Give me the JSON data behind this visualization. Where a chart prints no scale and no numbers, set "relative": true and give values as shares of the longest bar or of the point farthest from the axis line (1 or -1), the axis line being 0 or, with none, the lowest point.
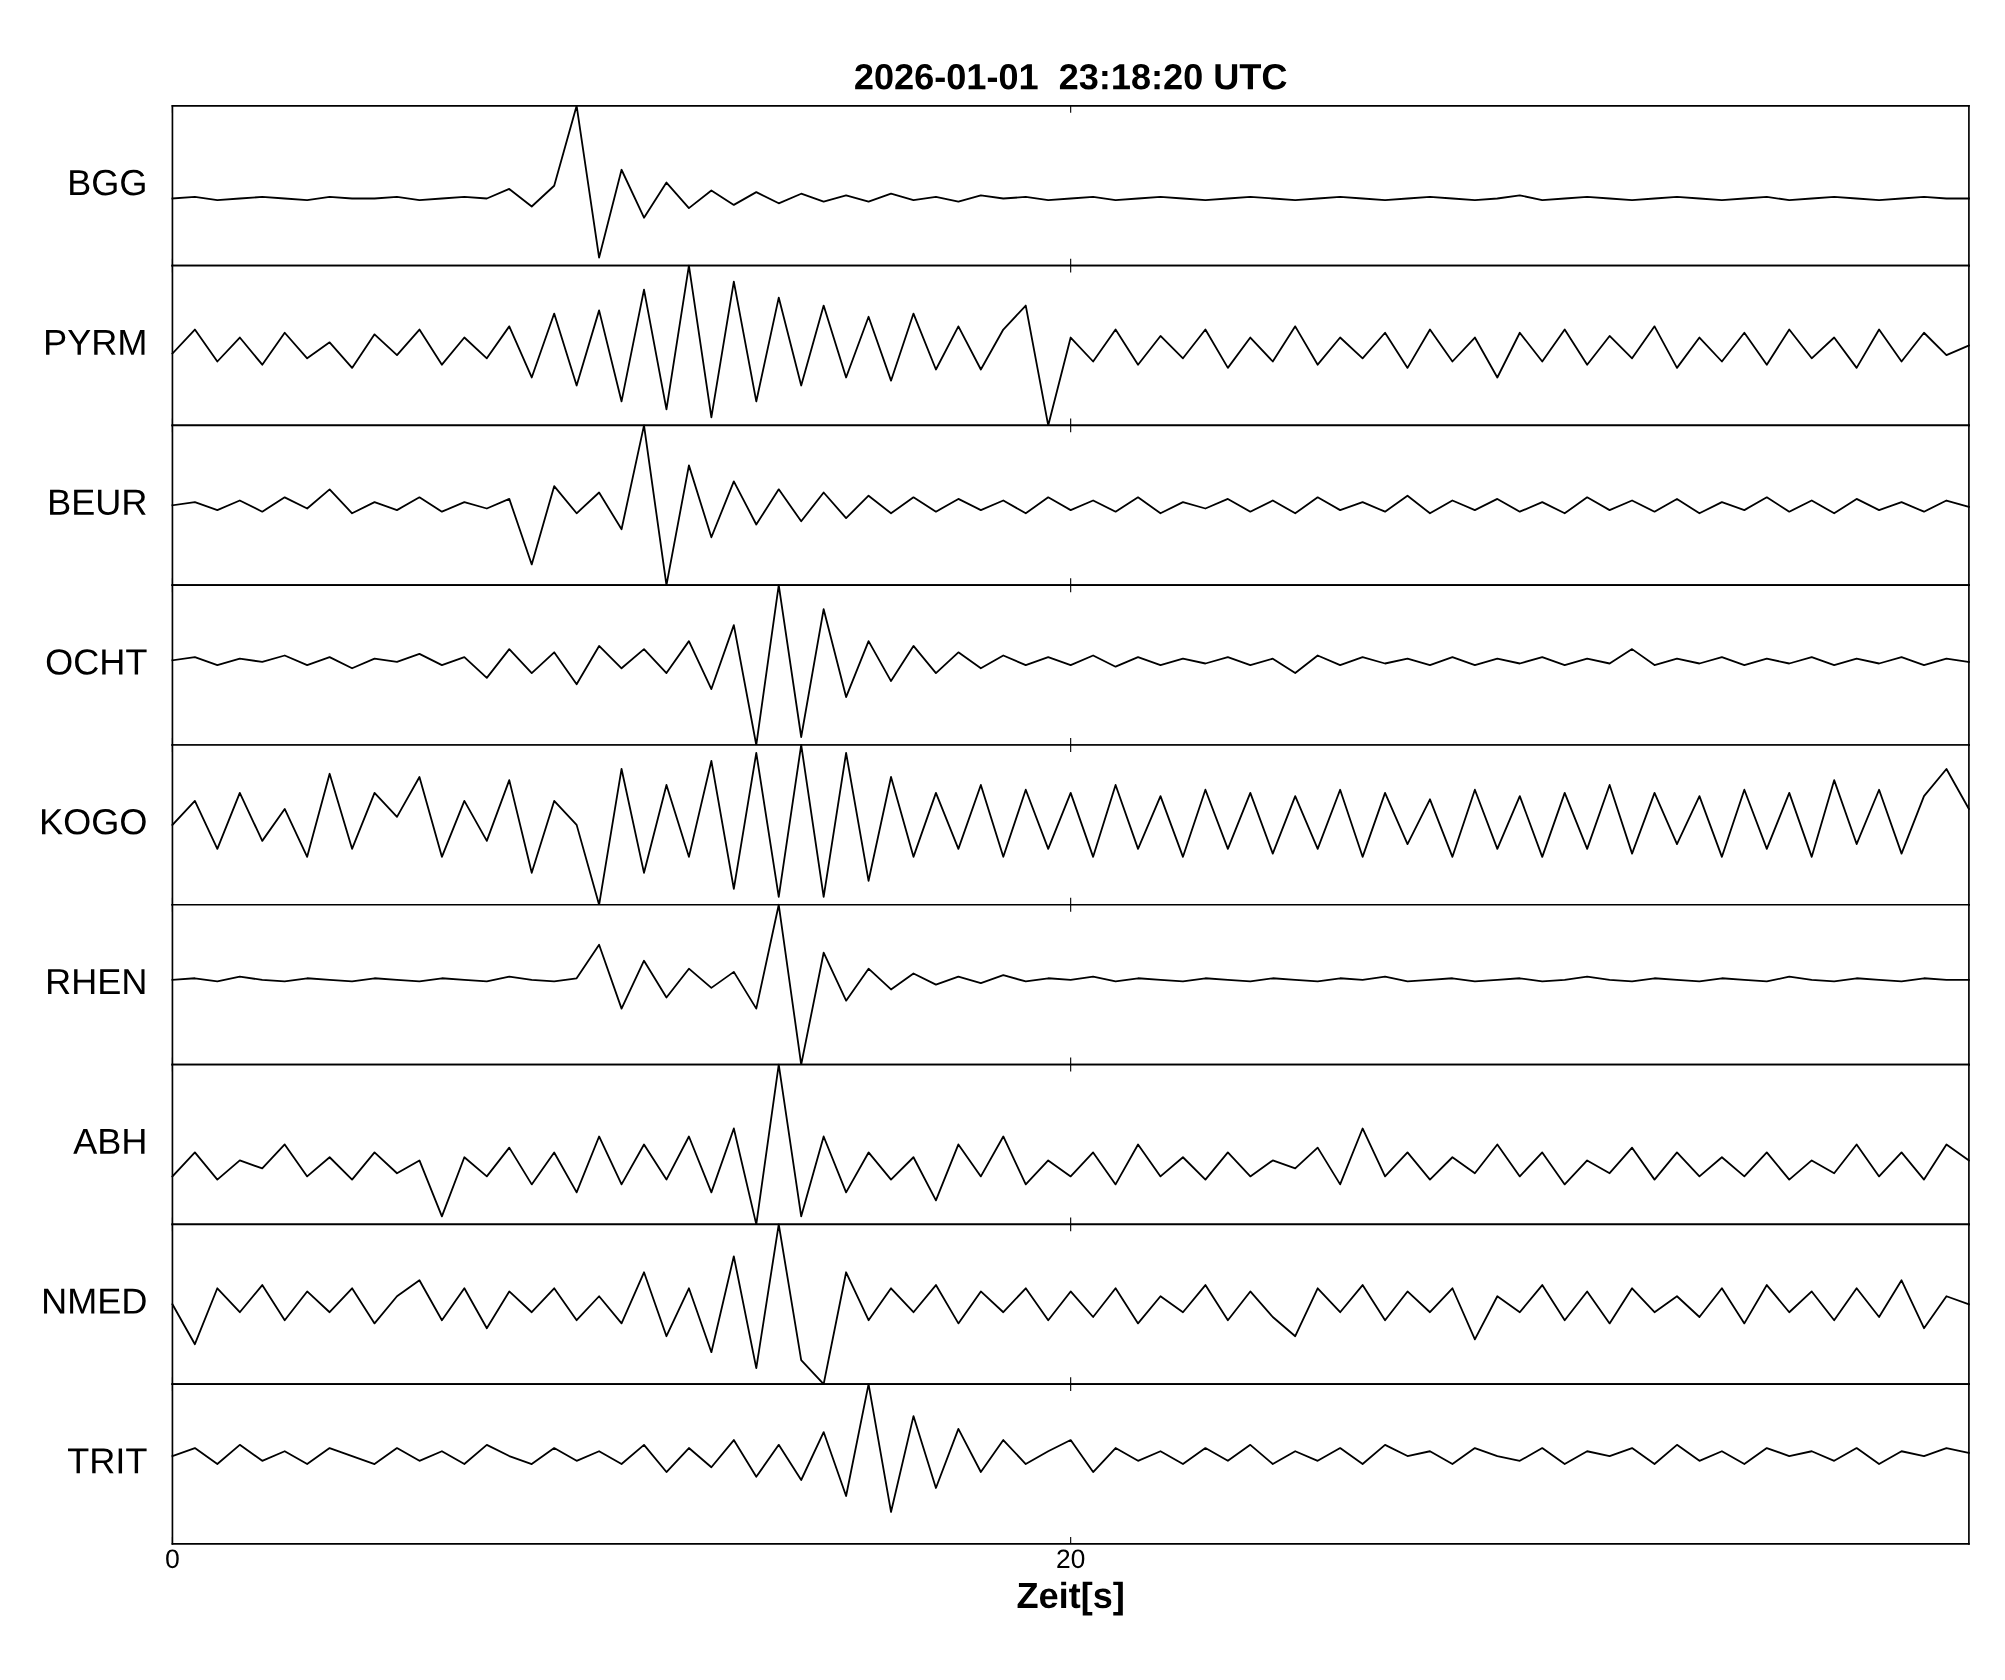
{
  "chart_data": [
    {
      "type": "line",
      "relative": true,
      "title": "2026-01-01  23:18:20 UTC",
      "ylabel": "BGG",
      "color": "#000000",
      "xlim": [
        0,
        40
      ],
      "xticks": [
        0,
        20
      ],
      "tick_labels": false,
      "x": [
        0,
        0.5,
        1,
        1.5,
        2,
        2.5,
        3,
        3.5,
        4,
        4.5,
        5,
        5.5,
        6,
        6.5,
        7,
        7.5,
        8,
        8.5,
        9,
        9.5,
        10,
        10.5,
        11,
        11.5,
        12,
        12.5,
        13,
        13.5,
        14,
        14.5,
        15,
        15.5,
        16,
        16.5,
        17,
        17.5,
        18,
        18.5,
        19,
        19.5,
        20,
        20.5,
        21,
        21.5,
        22,
        22.5,
        23,
        23.5,
        24,
        24.5,
        25,
        25.5,
        26,
        26.5,
        27,
        27.5,
        28,
        28.5,
        29,
        29.5,
        30,
        30.5,
        31,
        31.5,
        32,
        32.5,
        33,
        33.5,
        34,
        34.5,
        35,
        35.5,
        36,
        36.5,
        37,
        37.5,
        38,
        38.5,
        39,
        39.5,
        40
      ],
      "values": [
        0.42,
        0.43,
        0.41,
        0.42,
        0.43,
        0.42,
        0.41,
        0.43,
        0.42,
        0.42,
        0.43,
        0.41,
        0.42,
        0.43,
        0.42,
        0.48,
        0.37,
        0.5,
        1.0,
        0.05,
        0.6,
        0.3,
        0.52,
        0.36,
        0.47,
        0.38,
        0.46,
        0.39,
        0.45,
        0.4,
        0.44,
        0.4,
        0.45,
        0.41,
        0.43,
        0.4,
        0.44,
        0.42,
        0.43,
        0.41,
        0.42,
        0.43,
        0.41,
        0.42,
        0.43,
        0.42,
        0.41,
        0.42,
        0.43,
        0.42,
        0.41,
        0.42,
        0.43,
        0.42,
        0.41,
        0.42,
        0.43,
        0.42,
        0.41,
        0.42,
        0.44,
        0.41,
        0.42,
        0.43,
        0.42,
        0.41,
        0.42,
        0.43,
        0.42,
        0.41,
        0.42,
        0.43,
        0.41,
        0.42,
        0.43,
        0.42,
        0.41,
        0.42,
        0.43,
        0.42,
        0.42
      ]
    },
    {
      "type": "line",
      "relative": true,
      "ylabel": "PYRM",
      "color": "#000000",
      "xlim": [
        0,
        40
      ],
      "xticks": [
        0,
        20
      ],
      "tick_labels": false,
      "x": [
        0,
        0.5,
        1,
        1.5,
        2,
        2.5,
        3,
        3.5,
        4,
        4.5,
        5,
        5.5,
        6,
        6.5,
        7,
        7.5,
        8,
        8.5,
        9,
        9.5,
        10,
        10.5,
        11,
        11.5,
        12,
        12.5,
        13,
        13.5,
        14,
        14.5,
        15,
        15.5,
        16,
        16.5,
        17,
        17.5,
        18,
        18.5,
        19,
        19.5,
        20,
        20.5,
        21,
        21.5,
        22,
        22.5,
        23,
        23.5,
        24,
        24.5,
        25,
        25.5,
        26,
        26.5,
        27,
        27.5,
        28,
        28.5,
        29,
        29.5,
        30,
        30.5,
        31,
        31.5,
        32,
        32.5,
        33,
        33.5,
        34,
        34.5,
        35,
        35.5,
        36,
        36.5,
        37,
        37.5,
        38,
        38.5,
        39,
        39.5,
        40
      ],
      "values": [
        0.45,
        0.6,
        0.4,
        0.55,
        0.38,
        0.58,
        0.42,
        0.52,
        0.36,
        0.57,
        0.44,
        0.6,
        0.38,
        0.55,
        0.42,
        0.62,
        0.3,
        0.7,
        0.25,
        0.72,
        0.15,
        0.85,
        0.1,
        1.0,
        0.05,
        0.9,
        0.15,
        0.8,
        0.25,
        0.75,
        0.3,
        0.68,
        0.28,
        0.7,
        0.35,
        0.62,
        0.35,
        0.6,
        0.75,
        0.0,
        0.55,
        0.4,
        0.6,
        0.38,
        0.56,
        0.42,
        0.6,
        0.36,
        0.55,
        0.4,
        0.62,
        0.38,
        0.55,
        0.42,
        0.58,
        0.36,
        0.6,
        0.4,
        0.55,
        0.3,
        0.58,
        0.4,
        0.6,
        0.38,
        0.56,
        0.42,
        0.62,
        0.36,
        0.55,
        0.4,
        0.58,
        0.38,
        0.6,
        0.42,
        0.55,
        0.36,
        0.6,
        0.4,
        0.58,
        0.44,
        0.5
      ]
    },
    {
      "type": "line",
      "relative": true,
      "ylabel": "BEUR",
      "color": "#000000",
      "xlim": [
        0,
        40
      ],
      "xticks": [
        0,
        20
      ],
      "tick_labels": false,
      "x": [
        0,
        0.5,
        1,
        1.5,
        2,
        2.5,
        3,
        3.5,
        4,
        4.5,
        5,
        5.5,
        6,
        6.5,
        7,
        7.5,
        8,
        8.5,
        9,
        9.5,
        10,
        10.5,
        11,
        11.5,
        12,
        12.5,
        13,
        13.5,
        14,
        14.5,
        15,
        15.5,
        16,
        16.5,
        17,
        17.5,
        18,
        18.5,
        19,
        19.5,
        20,
        20.5,
        21,
        21.5,
        22,
        22.5,
        23,
        23.5,
        24,
        24.5,
        25,
        25.5,
        26,
        26.5,
        27,
        27.5,
        28,
        28.5,
        29,
        29.5,
        30,
        30.5,
        31,
        31.5,
        32,
        32.5,
        33,
        33.5,
        34,
        34.5,
        35,
        35.5,
        36,
        36.5,
        37,
        37.5,
        38,
        38.5,
        39,
        39.5,
        40
      ],
      "values": [
        0.5,
        0.52,
        0.47,
        0.53,
        0.46,
        0.55,
        0.48,
        0.6,
        0.45,
        0.52,
        0.47,
        0.55,
        0.46,
        0.52,
        0.48,
        0.54,
        0.13,
        0.62,
        0.45,
        0.58,
        0.35,
        1.0,
        0.0,
        0.75,
        0.3,
        0.65,
        0.38,
        0.6,
        0.4,
        0.58,
        0.42,
        0.56,
        0.45,
        0.55,
        0.46,
        0.54,
        0.47,
        0.53,
        0.45,
        0.55,
        0.47,
        0.53,
        0.46,
        0.55,
        0.45,
        0.52,
        0.48,
        0.54,
        0.46,
        0.53,
        0.45,
        0.55,
        0.47,
        0.52,
        0.46,
        0.56,
        0.45,
        0.53,
        0.47,
        0.54,
        0.46,
        0.52,
        0.45,
        0.55,
        0.47,
        0.53,
        0.46,
        0.54,
        0.45,
        0.52,
        0.47,
        0.55,
        0.46,
        0.53,
        0.45,
        0.54,
        0.47,
        0.52,
        0.46,
        0.53,
        0.49
      ]
    },
    {
      "type": "line",
      "relative": true,
      "ylabel": "OCHT",
      "color": "#000000",
      "xlim": [
        0,
        40
      ],
      "xticks": [
        0,
        20
      ],
      "tick_labels": false,
      "x": [
        0,
        0.5,
        1,
        1.5,
        2,
        2.5,
        3,
        3.5,
        4,
        4.5,
        5,
        5.5,
        6,
        6.5,
        7,
        7.5,
        8,
        8.5,
        9,
        9.5,
        10,
        10.5,
        11,
        11.5,
        12,
        12.5,
        13,
        13.5,
        14,
        14.5,
        15,
        15.5,
        16,
        16.5,
        17,
        17.5,
        18,
        18.5,
        19,
        19.5,
        20,
        20.5,
        21,
        21.5,
        22,
        22.5,
        23,
        23.5,
        24,
        24.5,
        25,
        25.5,
        26,
        26.5,
        27,
        27.5,
        28,
        28.5,
        29,
        29.5,
        30,
        30.5,
        31,
        31.5,
        32,
        32.5,
        33,
        33.5,
        34,
        34.5,
        35,
        35.5,
        36,
        36.5,
        37,
        37.5,
        38,
        38.5,
        39,
        39.5,
        40
      ],
      "values": [
        0.53,
        0.55,
        0.5,
        0.54,
        0.52,
        0.56,
        0.5,
        0.55,
        0.48,
        0.54,
        0.52,
        0.57,
        0.5,
        0.55,
        0.42,
        0.6,
        0.45,
        0.58,
        0.38,
        0.62,
        0.48,
        0.6,
        0.45,
        0.65,
        0.35,
        0.75,
        0.0,
        1.0,
        0.05,
        0.85,
        0.3,
        0.65,
        0.4,
        0.62,
        0.45,
        0.58,
        0.48,
        0.56,
        0.5,
        0.55,
        0.5,
        0.56,
        0.49,
        0.55,
        0.5,
        0.54,
        0.51,
        0.55,
        0.5,
        0.54,
        0.45,
        0.56,
        0.5,
        0.55,
        0.51,
        0.54,
        0.5,
        0.55,
        0.5,
        0.54,
        0.51,
        0.55,
        0.5,
        0.54,
        0.51,
        0.6,
        0.5,
        0.54,
        0.51,
        0.55,
        0.5,
        0.54,
        0.51,
        0.55,
        0.5,
        0.54,
        0.51,
        0.55,
        0.5,
        0.54,
        0.52
      ]
    },
    {
      "type": "line",
      "relative": true,
      "ylabel": "KOGO",
      "color": "#000000",
      "xlim": [
        0,
        40
      ],
      "xticks": [
        0,
        20
      ],
      "tick_labels": false,
      "x": [
        0,
        0.5,
        1,
        1.5,
        2,
        2.5,
        3,
        3.5,
        4,
        4.5,
        5,
        5.5,
        6,
        6.5,
        7,
        7.5,
        8,
        8.5,
        9,
        9.5,
        10,
        10.5,
        11,
        11.5,
        12,
        12.5,
        13,
        13.5,
        14,
        14.5,
        15,
        15.5,
        16,
        16.5,
        17,
        17.5,
        18,
        18.5,
        19,
        19.5,
        20,
        20.5,
        21,
        21.5,
        22,
        22.5,
        23,
        23.5,
        24,
        24.5,
        25,
        25.5,
        26,
        26.5,
        27,
        27.5,
        28,
        28.5,
        29,
        29.5,
        30,
        30.5,
        31,
        31.5,
        32,
        32.5,
        33,
        33.5,
        34,
        34.5,
        35,
        35.5,
        36,
        36.5,
        37,
        37.5,
        38,
        38.5,
        39,
        39.5,
        40
      ],
      "values": [
        0.5,
        0.65,
        0.35,
        0.7,
        0.4,
        0.6,
        0.3,
        0.82,
        0.35,
        0.7,
        0.55,
        0.8,
        0.3,
        0.65,
        0.4,
        0.78,
        0.2,
        0.65,
        0.5,
        0.0,
        0.85,
        0.2,
        0.75,
        0.3,
        0.9,
        0.1,
        0.95,
        0.05,
        1.0,
        0.05,
        0.95,
        0.15,
        0.8,
        0.3,
        0.7,
        0.35,
        0.75,
        0.3,
        0.72,
        0.35,
        0.7,
        0.3,
        0.75,
        0.35,
        0.68,
        0.3,
        0.72,
        0.35,
        0.7,
        0.32,
        0.68,
        0.35,
        0.72,
        0.3,
        0.7,
        0.38,
        0.66,
        0.3,
        0.72,
        0.35,
        0.68,
        0.3,
        0.7,
        0.35,
        0.75,
        0.32,
        0.7,
        0.38,
        0.68,
        0.3,
        0.72,
        0.35,
        0.7,
        0.3,
        0.78,
        0.38,
        0.72,
        0.32,
        0.68,
        0.85,
        0.6
      ]
    },
    {
      "type": "line",
      "relative": true,
      "ylabel": "RHEN",
      "color": "#000000",
      "xlim": [
        0,
        40
      ],
      "xticks": [
        0,
        20
      ],
      "tick_labels": false,
      "x": [
        0,
        0.5,
        1,
        1.5,
        2,
        2.5,
        3,
        3.5,
        4,
        4.5,
        5,
        5.5,
        6,
        6.5,
        7,
        7.5,
        8,
        8.5,
        9,
        9.5,
        10,
        10.5,
        11,
        11.5,
        12,
        12.5,
        13,
        13.5,
        14,
        14.5,
        15,
        15.5,
        16,
        16.5,
        17,
        17.5,
        18,
        18.5,
        19,
        19.5,
        20,
        20.5,
        21,
        21.5,
        22,
        22.5,
        23,
        23.5,
        24,
        24.5,
        25,
        25.5,
        26,
        26.5,
        27,
        27.5,
        28,
        28.5,
        29,
        29.5,
        30,
        30.5,
        31,
        31.5,
        32,
        32.5,
        33,
        33.5,
        34,
        34.5,
        35,
        35.5,
        36,
        36.5,
        37,
        37.5,
        38,
        38.5,
        39,
        39.5,
        40
      ],
      "values": [
        0.53,
        0.54,
        0.52,
        0.55,
        0.53,
        0.52,
        0.54,
        0.53,
        0.52,
        0.54,
        0.53,
        0.52,
        0.54,
        0.53,
        0.52,
        0.55,
        0.53,
        0.52,
        0.54,
        0.75,
        0.35,
        0.65,
        0.42,
        0.6,
        0.48,
        0.58,
        0.35,
        1.0,
        0.0,
        0.7,
        0.4,
        0.6,
        0.47,
        0.57,
        0.5,
        0.55,
        0.51,
        0.56,
        0.52,
        0.54,
        0.53,
        0.55,
        0.52,
        0.54,
        0.53,
        0.52,
        0.54,
        0.53,
        0.52,
        0.54,
        0.53,
        0.52,
        0.54,
        0.53,
        0.55,
        0.52,
        0.53,
        0.54,
        0.52,
        0.53,
        0.54,
        0.52,
        0.53,
        0.55,
        0.53,
        0.52,
        0.54,
        0.53,
        0.52,
        0.54,
        0.53,
        0.52,
        0.55,
        0.53,
        0.52,
        0.54,
        0.53,
        0.52,
        0.54,
        0.53,
        0.53
      ]
    },
    {
      "type": "line",
      "relative": true,
      "ylabel": "ABH",
      "color": "#000000",
      "xlim": [
        0,
        40
      ],
      "xticks": [
        0,
        20
      ],
      "tick_labels": false,
      "x": [
        0,
        0.5,
        1,
        1.5,
        2,
        2.5,
        3,
        3.5,
        4,
        4.5,
        5,
        5.5,
        6,
        6.5,
        7,
        7.5,
        8,
        8.5,
        9,
        9.5,
        10,
        10.5,
        11,
        11.5,
        12,
        12.5,
        13,
        13.5,
        14,
        14.5,
        15,
        15.5,
        16,
        16.5,
        17,
        17.5,
        18,
        18.5,
        19,
        19.5,
        20,
        20.5,
        21,
        21.5,
        22,
        22.5,
        23,
        23.5,
        24,
        24.5,
        25,
        25.5,
        26,
        26.5,
        27,
        27.5,
        28,
        28.5,
        29,
        29.5,
        30,
        30.5,
        31,
        31.5,
        32,
        32.5,
        33,
        33.5,
        34,
        34.5,
        35,
        35.5,
        36,
        36.5,
        37,
        37.5,
        38,
        38.5,
        39,
        39.5,
        40
      ],
      "values": [
        0.3,
        0.45,
        0.28,
        0.4,
        0.35,
        0.5,
        0.3,
        0.42,
        0.28,
        0.45,
        0.32,
        0.4,
        0.05,
        0.42,
        0.3,
        0.48,
        0.25,
        0.45,
        0.2,
        0.55,
        0.25,
        0.5,
        0.28,
        0.55,
        0.2,
        0.6,
        0.0,
        1.0,
        0.05,
        0.55,
        0.2,
        0.45,
        0.28,
        0.42,
        0.15,
        0.5,
        0.3,
        0.55,
        0.25,
        0.4,
        0.3,
        0.45,
        0.25,
        0.5,
        0.3,
        0.42,
        0.28,
        0.45,
        0.3,
        0.4,
        0.35,
        0.48,
        0.25,
        0.6,
        0.3,
        0.45,
        0.28,
        0.42,
        0.32,
        0.5,
        0.3,
        0.45,
        0.25,
        0.4,
        0.32,
        0.48,
        0.28,
        0.45,
        0.3,
        0.42,
        0.3,
        0.45,
        0.28,
        0.4,
        0.32,
        0.5,
        0.3,
        0.45,
        0.28,
        0.5,
        0.4
      ]
    },
    {
      "type": "line",
      "relative": true,
      "ylabel": "NMED",
      "color": "#000000",
      "xlim": [
        0,
        40
      ],
      "xticks": [
        0,
        20
      ],
      "tick_labels": false,
      "x": [
        0,
        0.5,
        1,
        1.5,
        2,
        2.5,
        3,
        3.5,
        4,
        4.5,
        5,
        5.5,
        6,
        6.5,
        7,
        7.5,
        8,
        8.5,
        9,
        9.5,
        10,
        10.5,
        11,
        11.5,
        12,
        12.5,
        13,
        13.5,
        14,
        14.5,
        15,
        15.5,
        16,
        16.5,
        17,
        17.5,
        18,
        18.5,
        19,
        19.5,
        20,
        20.5,
        21,
        21.5,
        22,
        22.5,
        23,
        23.5,
        24,
        24.5,
        25,
        25.5,
        26,
        26.5,
        27,
        27.5,
        28,
        28.5,
        29,
        29.5,
        30,
        30.5,
        31,
        31.5,
        32,
        32.5,
        33,
        33.5,
        34,
        34.5,
        35,
        35.5,
        36,
        36.5,
        37,
        37.5,
        38,
        38.5,
        39,
        39.5,
        40
      ],
      "values": [
        0.5,
        0.25,
        0.6,
        0.45,
        0.62,
        0.4,
        0.58,
        0.45,
        0.6,
        0.38,
        0.55,
        0.65,
        0.4,
        0.6,
        0.35,
        0.58,
        0.45,
        0.6,
        0.4,
        0.55,
        0.38,
        0.7,
        0.3,
        0.6,
        0.2,
        0.8,
        0.1,
        1.0,
        0.15,
        0.0,
        0.7,
        0.4,
        0.6,
        0.45,
        0.62,
        0.38,
        0.58,
        0.45,
        0.6,
        0.4,
        0.58,
        0.42,
        0.6,
        0.38,
        0.55,
        0.45,
        0.62,
        0.4,
        0.58,
        0.42,
        0.3,
        0.6,
        0.45,
        0.62,
        0.4,
        0.58,
        0.45,
        0.6,
        0.28,
        0.55,
        0.45,
        0.62,
        0.4,
        0.58,
        0.38,
        0.6,
        0.45,
        0.55,
        0.42,
        0.6,
        0.38,
        0.62,
        0.45,
        0.58,
        0.4,
        0.6,
        0.42,
        0.65,
        0.35,
        0.55,
        0.5
      ]
    },
    {
      "type": "line",
      "relative": true,
      "ylabel": "TRIT",
      "xlabel": "Zeit[s]",
      "color": "#000000",
      "xlim": [
        0,
        40
      ],
      "xticks": [
        0,
        20
      ],
      "tick_labels": "x",
      "x": [
        0,
        0.5,
        1,
        1.5,
        2,
        2.5,
        3,
        3.5,
        4,
        4.5,
        5,
        5.5,
        6,
        6.5,
        7,
        7.5,
        8,
        8.5,
        9,
        9.5,
        10,
        10.5,
        11,
        11.5,
        12,
        12.5,
        13,
        13.5,
        14,
        14.5,
        15,
        15.5,
        16,
        16.5,
        17,
        17.5,
        18,
        18.5,
        19,
        19.5,
        20,
        20.5,
        21,
        21.5,
        22,
        22.5,
        23,
        23.5,
        24,
        24.5,
        25,
        25.5,
        26,
        26.5,
        27,
        27.5,
        28,
        28.5,
        29,
        29.5,
        30,
        30.5,
        31,
        31.5,
        32,
        32.5,
        33,
        33.5,
        34,
        34.5,
        35,
        35.5,
        36,
        36.5,
        37,
        37.5,
        38,
        38.5,
        39,
        39.5,
        40
      ],
      "values": [
        0.55,
        0.6,
        0.5,
        0.62,
        0.52,
        0.58,
        0.5,
        0.6,
        0.55,
        0.5,
        0.6,
        0.52,
        0.58,
        0.5,
        0.62,
        0.55,
        0.5,
        0.6,
        0.52,
        0.58,
        0.5,
        0.62,
        0.45,
        0.6,
        0.48,
        0.65,
        0.42,
        0.62,
        0.4,
        0.7,
        0.3,
        1.0,
        0.2,
        0.8,
        0.35,
        0.72,
        0.45,
        0.65,
        0.5,
        0.58,
        0.65,
        0.45,
        0.6,
        0.52,
        0.58,
        0.5,
        0.6,
        0.52,
        0.62,
        0.5,
        0.58,
        0.52,
        0.6,
        0.5,
        0.62,
        0.55,
        0.58,
        0.5,
        0.6,
        0.55,
        0.52,
        0.6,
        0.5,
        0.58,
        0.55,
        0.6,
        0.5,
        0.62,
        0.52,
        0.58,
        0.5,
        0.6,
        0.55,
        0.58,
        0.52,
        0.6,
        0.5,
        0.58,
        0.55,
        0.6,
        0.57
      ]
    }
  ]
}
